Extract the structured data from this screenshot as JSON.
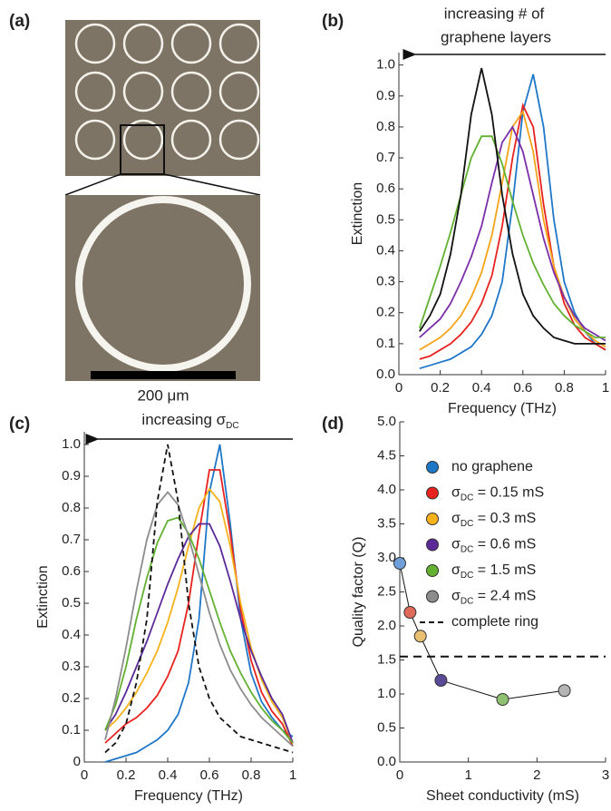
{
  "panel_a": {
    "label": "(a)",
    "scale_bar": "200 μm"
  },
  "chart_data": [
    {
      "type": "line",
      "label": "(b)",
      "annotation": [
        "increasing # of",
        "graphene layers"
      ],
      "xlabel": "Frequency (THz)",
      "ylabel": "Extinction",
      "xlim": [
        0,
        1
      ],
      "xticks": [
        0,
        0.2,
        0.4,
        0.6,
        0.8,
        1
      ],
      "ylim": [
        0,
        1.04
      ],
      "yticks": [
        {
          "value": 0,
          "label": "0.0"
        },
        0.1,
        0.2,
        0.3,
        0.4,
        0.5,
        0.6,
        0.7,
        0.8,
        0.9,
        {
          "value": 1,
          "label": "1.0"
        }
      ],
      "x": [
        0.1,
        0.15,
        0.2,
        0.25,
        0.3,
        0.35,
        0.4,
        0.45,
        0.5,
        0.55,
        0.6,
        0.65,
        0.7,
        0.75,
        0.8,
        0.85,
        0.9,
        0.95,
        1.0
      ],
      "series": [
        {
          "color": "#1f77c8",
          "values": [
            0.02,
            0.03,
            0.04,
            0.05,
            0.07,
            0.09,
            0.13,
            0.19,
            0.3,
            0.55,
            0.85,
            0.97,
            0.8,
            0.5,
            0.3,
            0.2,
            0.14,
            0.1,
            0.08
          ]
        },
        {
          "color": "#e8231f",
          "values": [
            0.05,
            0.06,
            0.08,
            0.1,
            0.13,
            0.17,
            0.23,
            0.32,
            0.48,
            0.7,
            0.87,
            0.8,
            0.55,
            0.35,
            0.23,
            0.16,
            0.12,
            0.1,
            0.08
          ]
        },
        {
          "color": "#f5a41a",
          "values": [
            0.08,
            0.1,
            0.12,
            0.15,
            0.19,
            0.25,
            0.33,
            0.45,
            0.62,
            0.8,
            0.85,
            0.72,
            0.5,
            0.35,
            0.25,
            0.18,
            0.14,
            0.11,
            0.09
          ]
        },
        {
          "color": "#7b2fa8",
          "values": [
            0.12,
            0.15,
            0.18,
            0.23,
            0.3,
            0.38,
            0.48,
            0.62,
            0.75,
            0.8,
            0.72,
            0.58,
            0.44,
            0.33,
            0.25,
            0.19,
            0.15,
            0.13,
            0.11
          ]
        },
        {
          "color": "#63b130",
          "values": [
            0.15,
            0.25,
            0.35,
            0.46,
            0.58,
            0.7,
            0.77,
            0.77,
            0.68,
            0.56,
            0.45,
            0.36,
            0.29,
            0.23,
            0.19,
            0.16,
            0.14,
            0.12,
            0.12
          ]
        },
        {
          "color": "#111111",
          "values": [
            0.14,
            0.19,
            0.26,
            0.39,
            0.58,
            0.84,
            0.99,
            0.84,
            0.58,
            0.39,
            0.26,
            0.19,
            0.15,
            0.12,
            0.11,
            0.1,
            0.1,
            0.1,
            0.1
          ]
        }
      ]
    },
    {
      "type": "line",
      "label": "(c)",
      "annotation": [
        "increasing σDC"
      ],
      "xlabel": "Frequency (THz)",
      "ylabel": "Extinction",
      "xlim": [
        0,
        1
      ],
      "xticks": [
        0,
        0.2,
        0.4,
        0.6,
        0.8,
        1
      ],
      "ylim": [
        0,
        1.04
      ],
      "yticks": [
        0,
        0.1,
        0.2,
        0.3,
        0.4,
        0.5,
        0.6,
        0.7,
        0.8,
        0.9,
        {
          "value": 1,
          "label": "1.0"
        }
      ],
      "x": [
        0.1,
        0.15,
        0.2,
        0.25,
        0.3,
        0.35,
        0.4,
        0.45,
        0.5,
        0.55,
        0.6,
        0.65,
        0.7,
        0.75,
        0.8,
        0.85,
        0.9,
        0.95,
        1.0
      ],
      "series": [
        {
          "name": "no graphene",
          "color": "#1f77c8",
          "values": [
            0,
            0.01,
            0.02,
            0.03,
            0.05,
            0.07,
            0.1,
            0.15,
            0.25,
            0.45,
            0.85,
            1.0,
            0.75,
            0.45,
            0.28,
            0.19,
            0.14,
            0.1,
            0.08
          ]
        },
        {
          "name": "σDC = 0.15 mS",
          "color": "#e8231f",
          "values": [
            0.06,
            0.09,
            0.12,
            0.14,
            0.17,
            0.21,
            0.27,
            0.35,
            0.5,
            0.72,
            0.92,
            0.92,
            0.72,
            0.48,
            0.32,
            0.22,
            0.16,
            0.12,
            0.05
          ]
        },
        {
          "name": "σDC = 0.3 mS",
          "color": "#f5b21a",
          "values": [
            0.1,
            0.13,
            0.17,
            0.22,
            0.28,
            0.35,
            0.44,
            0.55,
            0.68,
            0.8,
            0.86,
            0.82,
            0.68,
            0.5,
            0.36,
            0.26,
            0.19,
            0.14,
            0.06
          ]
        },
        {
          "name": "σDC = 0.6 mS",
          "color": "#5b2a98",
          "values": [
            0.1,
            0.15,
            0.22,
            0.3,
            0.38,
            0.47,
            0.56,
            0.64,
            0.71,
            0.75,
            0.75,
            0.68,
            0.57,
            0.45,
            0.35,
            0.27,
            0.2,
            0.15,
            0.06
          ]
        },
        {
          "name": "σDC = 1.5 mS",
          "color": "#63b130",
          "values": [
            0.1,
            0.18,
            0.3,
            0.45,
            0.58,
            0.69,
            0.76,
            0.77,
            0.72,
            0.64,
            0.54,
            0.44,
            0.35,
            0.28,
            0.22,
            0.17,
            0.13,
            0.1,
            0.06
          ]
        },
        {
          "name": "σDC = 2.4 mS",
          "color": "#8c8c8c",
          "values": [
            0.07,
            0.2,
            0.36,
            0.54,
            0.7,
            0.81,
            0.85,
            0.81,
            0.71,
            0.59,
            0.47,
            0.37,
            0.29,
            0.23,
            0.18,
            0.14,
            0.11,
            0.08,
            0.05
          ]
        },
        {
          "name": "complete ring",
          "color": "#111111",
          "dashed": true,
          "values": [
            0.03,
            0.06,
            0.12,
            0.25,
            0.45,
            0.82,
            1.0,
            0.82,
            0.5,
            0.3,
            0.2,
            0.14,
            0.11,
            0.08,
            0.07,
            0.06,
            0.05,
            0.04,
            0.03
          ]
        }
      ]
    },
    {
      "type": "scatter",
      "label": "(d)",
      "xlabel": "Sheet conductivity (mS)",
      "ylabel": "Quality factor (Q)",
      "xlim": [
        0,
        3
      ],
      "xticks": [
        0,
        1,
        2,
        3
      ],
      "ylim": [
        0,
        5
      ],
      "yticks": [
        {
          "value": 0,
          "label": "0.0"
        },
        0.5,
        {
          "value": 1,
          "label": "1.0"
        },
        1.5,
        {
          "value": 2,
          "label": "2.0"
        },
        2.5,
        {
          "value": 3,
          "label": "3.0"
        },
        3.5,
        {
          "value": 4,
          "label": "4.0"
        },
        4.5,
        {
          "value": 5,
          "label": "5.0"
        }
      ],
      "x": [
        0,
        0.15,
        0.3,
        0.6,
        1.5,
        2.4
      ],
      "values": [
        2.92,
        2.2,
        1.85,
        1.2,
        0.92,
        1.05
      ],
      "point_colors": [
        "#6f9fd8",
        "#e06a5a",
        "#e8c070",
        "#5b4a98",
        "#8fc070",
        "#b5b5b5"
      ],
      "hline": 1.55
    }
  ]
}
